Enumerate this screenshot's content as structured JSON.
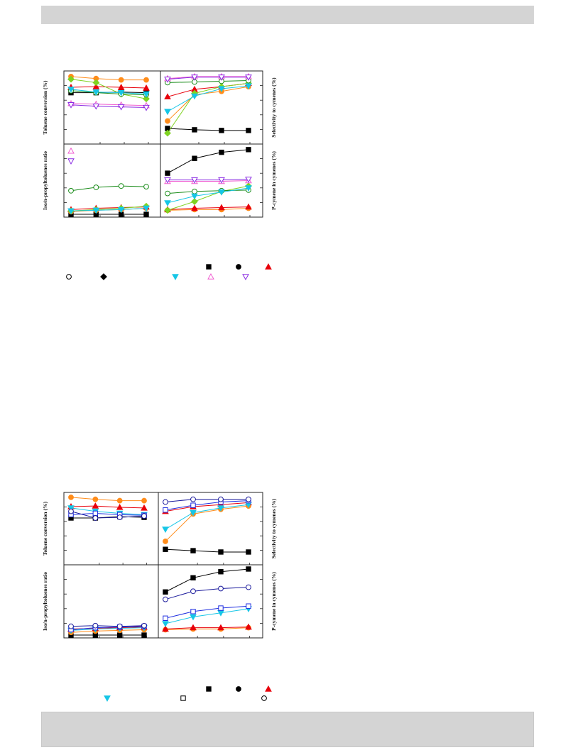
{
  "chart_data": [
    {
      "type": "line",
      "x": [
        1,
        2,
        3,
        4
      ],
      "panels": [
        {
          "id": "top-left",
          "ylabel": "Toluene conversion (%)",
          "ylim": [
            0,
            100
          ],
          "series": [
            {
              "marker": "filled-square",
              "color": "#000000",
              "values": [
                73,
                73,
                74,
                73
              ]
            },
            {
              "marker": "filled-circle-orange",
              "color": "#ff8c1a",
              "values": [
                97,
                94,
                92,
                92
              ]
            },
            {
              "marker": "filled-triangle",
              "color": "#e8000b",
              "values": [
                81,
                82,
                81,
                80
              ]
            },
            {
              "marker": "filled-diamond",
              "color": "#7fd321",
              "values": [
                93,
                88,
                71,
                64
              ]
            },
            {
              "marker": "open-circle",
              "color": "#1a8c1a",
              "values": [
                76,
                73,
                71,
                70
              ]
            },
            {
              "marker": "filled-triangle-down",
              "color": "#16c6e6",
              "values": [
                78,
                74,
                73,
                71
              ]
            },
            {
              "marker": "open-triangle",
              "color": "#f05cd0",
              "values": [
                57,
                56,
                55,
                54
              ]
            },
            {
              "marker": "open-triangle-down",
              "color": "#8a2be2",
              "values": [
                55,
                53,
                52,
                51
              ]
            }
          ]
        },
        {
          "id": "top-right",
          "ylabel": "Selectivity to cymenes (%)",
          "ylim": [
            0,
            100
          ],
          "series": [
            {
              "marker": "filled-square",
              "color": "#000000",
              "values": [
                20,
                18,
                17,
                17
              ]
            },
            {
              "marker": "filled-circle-orange",
              "color": "#ff8c1a",
              "values": [
                31,
                70,
                75,
                82
              ]
            },
            {
              "marker": "filled-triangle",
              "color": "#e8000b",
              "values": [
                67,
                78,
                82,
                87
              ]
            },
            {
              "marker": "filled-diamond",
              "color": "#7fd321",
              "values": [
                13,
                72,
                82,
                87
              ]
            },
            {
              "marker": "open-circle",
              "color": "#1a8c1a",
              "values": [
                88,
                89,
                90,
                91
              ]
            },
            {
              "marker": "filled-triangle-down",
              "color": "#16c6e6",
              "values": [
                45,
                68,
                79,
                83
              ]
            },
            {
              "marker": "open-triangle",
              "color": "#f05cd0",
              "values": [
                94,
                97,
                97,
                97
              ]
            },
            {
              "marker": "open-triangle-down",
              "color": "#8a2be2",
              "values": [
                93,
                96,
                96,
                96
              ]
            }
          ]
        },
        {
          "id": "bottom-left",
          "ylabel": "Iso/n-propyltoluenes ratio",
          "ylim": [
            0,
            100
          ],
          "series": [
            {
              "marker": "filled-square",
              "color": "#000000",
              "values": [
                1,
                1,
                1,
                1
              ]
            },
            {
              "marker": "filled-circle-orange",
              "color": "#ff8c1a",
              "values": [
                5,
                7,
                8,
                10
              ]
            },
            {
              "marker": "filled-triangle",
              "color": "#e8000b",
              "values": [
                8,
                10,
                11,
                12
              ]
            },
            {
              "marker": "filled-diamond",
              "color": "#7fd321",
              "values": [
                6,
                8,
                10,
                13
              ]
            },
            {
              "marker": "open-circle",
              "color": "#1a8c1a",
              "values": [
                36,
                41,
                43,
                42
              ]
            },
            {
              "marker": "filled-triangle-down",
              "color": "#16c6e6",
              "values": [
                6,
                7,
                8,
                10
              ]
            },
            {
              "marker": "open-triangle",
              "color": "#f05cd0",
              "values": [
                95,
                0,
                0,
                0
              ]
            },
            {
              "marker": "open-triangle-down",
              "color": "#8a2be2",
              "values": [
                80,
                0,
                0,
                0
              ]
            }
          ]
        },
        {
          "id": "bottom-right",
          "ylabel": "P-cymene in cymenes (%)",
          "ylim": [
            0,
            100
          ],
          "series": [
            {
              "marker": "filled-square",
              "color": "#000000",
              "values": [
                62,
                84,
                93,
                97
              ]
            },
            {
              "marker": "filled-circle-orange",
              "color": "#ff8c1a",
              "values": [
                7,
                8,
                8,
                10
              ]
            },
            {
              "marker": "filled-triangle",
              "color": "#e8000b",
              "values": [
                8,
                10,
                11,
                12
              ]
            },
            {
              "marker": "filled-diamond",
              "color": "#7fd321",
              "values": [
                7,
                20,
                35,
                43
              ]
            },
            {
              "marker": "open-circle",
              "color": "#1a8c1a",
              "values": [
                32,
                35,
                36,
                37
              ]
            },
            {
              "marker": "filled-triangle-down",
              "color": "#16c6e6",
              "values": [
                18,
                28,
                34,
                40
              ]
            },
            {
              "marker": "open-triangle",
              "color": "#f05cd0",
              "values": [
                50,
                50,
                50,
                51
              ]
            },
            {
              "marker": "open-triangle-down",
              "color": "#8a2be2",
              "values": [
                52,
                52,
                52,
                53
              ]
            }
          ]
        }
      ],
      "legend": [
        {
          "marker": "filled-square",
          "color": "#000000"
        },
        {
          "marker": "filled-circle",
          "color": "#000000"
        },
        {
          "marker": "filled-triangle",
          "color": "#e8000b"
        },
        {
          "marker": "open-circle",
          "color": "#000000"
        },
        {
          "marker": "filled-diamond",
          "color": "#000000"
        },
        {
          "marker": "filled-triangle-down",
          "color": "#16c6e6"
        },
        {
          "marker": "open-triangle",
          "color": "#f05cd0"
        },
        {
          "marker": "open-triangle-down",
          "color": "#8a2be2"
        }
      ]
    },
    {
      "type": "line",
      "x": [
        1,
        2,
        3,
        4
      ],
      "panels": [
        {
          "id": "top-left",
          "ylabel": "Toluene conversion (%)",
          "ylim": [
            0,
            100
          ],
          "series": [
            {
              "marker": "filled-square",
              "color": "#000000",
              "values": [
                67,
                67,
                69,
                68
              ]
            },
            {
              "marker": "filled-circle-orange",
              "color": "#ff8c1a",
              "values": [
                98,
                95,
                93,
                93
              ]
            },
            {
              "marker": "filled-triangle",
              "color": "#e8000b",
              "values": [
                84,
                85,
                83,
                82
              ]
            },
            {
              "marker": "filled-triangle-down",
              "color": "#16c6e6",
              "values": [
                82,
                77,
                74,
                72
              ]
            },
            {
              "marker": "open-square",
              "color": "#1f2ee0",
              "values": [
                72,
                74,
                72,
                71
              ]
            },
            {
              "marker": "open-circle-blue",
              "color": "#1a1a9c",
              "values": [
                77,
                67,
                68,
                70
              ]
            }
          ]
        },
        {
          "id": "top-right",
          "ylabel": "Selectivity to cymenes (%)",
          "ylim": [
            0,
            100
          ],
          "series": [
            {
              "marker": "filled-square",
              "color": "#000000",
              "values": [
                20,
                18,
                16,
                16
              ]
            },
            {
              "marker": "filled-circle-orange",
              "color": "#ff8c1a",
              "values": [
                32,
                73,
                80,
                85
              ]
            },
            {
              "marker": "filled-triangle",
              "color": "#e8000b",
              "values": [
                77,
                84,
                87,
                90
              ]
            },
            {
              "marker": "filled-triangle-down",
              "color": "#16c6e6",
              "values": [
                50,
                75,
                82,
                87
              ]
            },
            {
              "marker": "open-square",
              "color": "#1f2ee0",
              "values": [
                79,
                86,
                91,
                93
              ]
            },
            {
              "marker": "open-circle-blue",
              "color": "#1a1a9c",
              "values": [
                91,
                95,
                95,
                95
              ]
            }
          ]
        },
        {
          "id": "bottom-left",
          "ylabel": "Iso/n-propyltoluenes ratio",
          "ylim": [
            0,
            100
          ],
          "series": [
            {
              "marker": "filled-square",
              "color": "#000000",
              "values": [
                1,
                1,
                1,
                1
              ]
            },
            {
              "marker": "filled-circle-orange",
              "color": "#ff8c1a",
              "values": [
                5,
                7,
                8,
                9
              ]
            },
            {
              "marker": "filled-triangle",
              "color": "#e8000b",
              "values": [
                10,
                11,
                12,
                13
              ]
            },
            {
              "marker": "filled-triangle-down",
              "color": "#16c6e6",
              "values": [
                8,
                10,
                11,
                12
              ]
            },
            {
              "marker": "open-square",
              "color": "#1f2ee0",
              "values": [
                9,
                12,
                13,
                14
              ]
            },
            {
              "marker": "open-circle-blue",
              "color": "#1a1a9c",
              "values": [
                14,
                15,
                14,
                15
              ]
            }
          ]
        },
        {
          "id": "bottom-right",
          "ylabel": "P-cymene in cymenes (%)",
          "ylim": [
            0,
            100
          ],
          "series": [
            {
              "marker": "filled-square",
              "color": "#000000",
              "values": [
                65,
                86,
                95,
                99
              ]
            },
            {
              "marker": "filled-circle-orange",
              "color": "#ff8c1a",
              "values": [
                9,
                10,
                10,
                12
              ]
            },
            {
              "marker": "filled-triangle",
              "color": "#e8000b",
              "values": [
                10,
                12,
                12,
                13
              ]
            },
            {
              "marker": "filled-triangle-down",
              "color": "#16c6e6",
              "values": [
                18,
                28,
                34,
                40
              ]
            },
            {
              "marker": "open-square",
              "color": "#1f2ee0",
              "values": [
                26,
                36,
                41,
                44
              ]
            },
            {
              "marker": "open-circle-blue",
              "color": "#1a1a9c",
              "values": [
                54,
                66,
                70,
                72
              ]
            }
          ]
        }
      ],
      "legend": [
        {
          "marker": "filled-square",
          "color": "#000000"
        },
        {
          "marker": "filled-circle",
          "color": "#000000"
        },
        {
          "marker": "filled-triangle",
          "color": "#e8000b"
        },
        {
          "marker": "filled-triangle-down",
          "color": "#16c6e6"
        },
        {
          "marker": "open-square",
          "color": "#000000"
        },
        {
          "marker": "open-circle",
          "color": "#000000"
        }
      ]
    }
  ]
}
